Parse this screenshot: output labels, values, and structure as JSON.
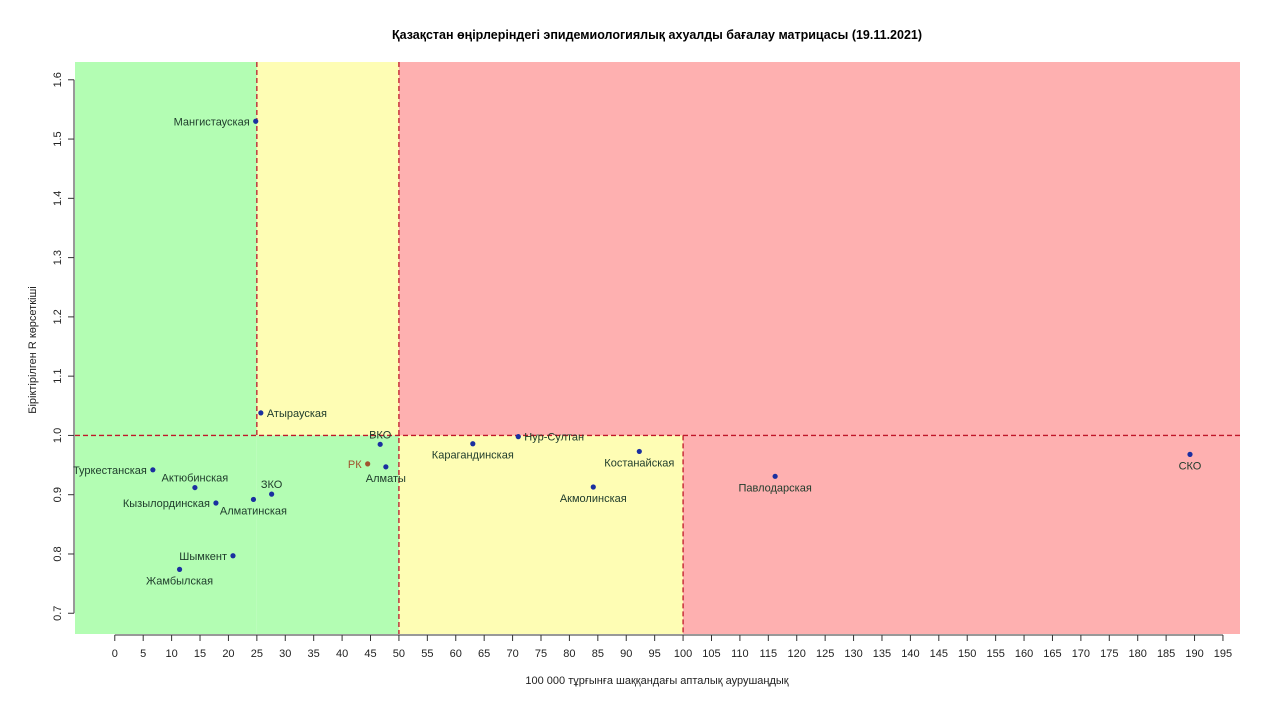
{
  "chart_data": {
    "type": "scatter",
    "title": "Қазақстан өңірлеріндегі эпидемиологиялық ахуалды бағалау матрицасы  (19.11.2021)",
    "xlabel": "100 000 тұрғынға шаққандағы апталық аурушаңдық",
    "ylabel": "Біріктірілген R көрсеткіші",
    "xlim": [
      -7,
      198
    ],
    "ylim": [
      0.665,
      1.63
    ],
    "xticks": [
      0,
      5,
      10,
      15,
      20,
      25,
      30,
      35,
      40,
      45,
      50,
      55,
      60,
      65,
      70,
      75,
      80,
      85,
      90,
      95,
      100,
      105,
      110,
      115,
      120,
      125,
      130,
      135,
      140,
      145,
      150,
      155,
      160,
      165,
      170,
      175,
      180,
      185,
      190,
      195
    ],
    "yticks": [
      0.7,
      0.8,
      0.9,
      1.0,
      1.1,
      1.2,
      1.3,
      1.4,
      1.5,
      1.6
    ],
    "thresholds": {
      "x": [
        25,
        50,
        100
      ],
      "y": 1.0
    },
    "zones": [
      {
        "x0": -7,
        "x1": 25,
        "y0": 0.665,
        "y1": 1.63,
        "color": "#b3fdb3"
      },
      {
        "x0": 25,
        "x1": 50,
        "y0": 1.0,
        "y1": 1.63,
        "color": "#fefdb4"
      },
      {
        "x0": 25,
        "x1": 50,
        "y0": 0.665,
        "y1": 1.0,
        "color": "#b3fdb3"
      },
      {
        "x0": 50,
        "x1": 198,
        "y0": 1.0,
        "y1": 1.63,
        "color": "#feb0b0"
      },
      {
        "x0": 50,
        "x1": 100,
        "y0": 0.665,
        "y1": 1.0,
        "color": "#fefdb4"
      },
      {
        "x0": 100,
        "x1": 198,
        "y0": 0.665,
        "y1": 1.0,
        "color": "#feb0b0"
      }
    ],
    "grid": false,
    "point_color": "#1a2fa0",
    "highlight_color": "#a0522d",
    "points": [
      {
        "label": "Мангистауская",
        "x": 24.8,
        "y": 1.53,
        "pos": "left"
      },
      {
        "label": "Атырауская",
        "x": 25.7,
        "y": 1.038,
        "pos": "right"
      },
      {
        "label": "ВКО",
        "x": 46.7,
        "y": 0.985,
        "pos": "above"
      },
      {
        "label": "Алматы",
        "x": 47.7,
        "y": 0.947,
        "pos": "below"
      },
      {
        "label": "РК",
        "x": 44.5,
        "y": 0.952,
        "pos": "left",
        "highlight": true
      },
      {
        "label": "Туркестанская",
        "x": 6.7,
        "y": 0.942,
        "pos": "left"
      },
      {
        "label": "Актюбинская",
        "x": 14.1,
        "y": 0.912,
        "pos": "above"
      },
      {
        "label": "Кызылординская",
        "x": 17.8,
        "y": 0.886,
        "pos": "left"
      },
      {
        "label": "ЗКО",
        "x": 27.6,
        "y": 0.901,
        "pos": "above"
      },
      {
        "label": "Алматинская",
        "x": 24.4,
        "y": 0.892,
        "pos": "below"
      },
      {
        "label": "Шымкент",
        "x": 20.8,
        "y": 0.797,
        "pos": "left"
      },
      {
        "label": "Жамбылская",
        "x": 11.4,
        "y": 0.774,
        "pos": "below"
      },
      {
        "label": "Карагандинская",
        "x": 63.0,
        "y": 0.986,
        "pos": "below"
      },
      {
        "label": "Нур-Султан",
        "x": 71.0,
        "y": 0.998,
        "pos": "right"
      },
      {
        "label": "Костанайская",
        "x": 92.3,
        "y": 0.973,
        "pos": "below"
      },
      {
        "label": "Акмолинская",
        "x": 84.2,
        "y": 0.913,
        "pos": "below"
      },
      {
        "label": "Павлодарская",
        "x": 116.2,
        "y": 0.931,
        "pos": "below"
      },
      {
        "label": "СКО",
        "x": 189.2,
        "y": 0.968,
        "pos": "below"
      }
    ]
  }
}
